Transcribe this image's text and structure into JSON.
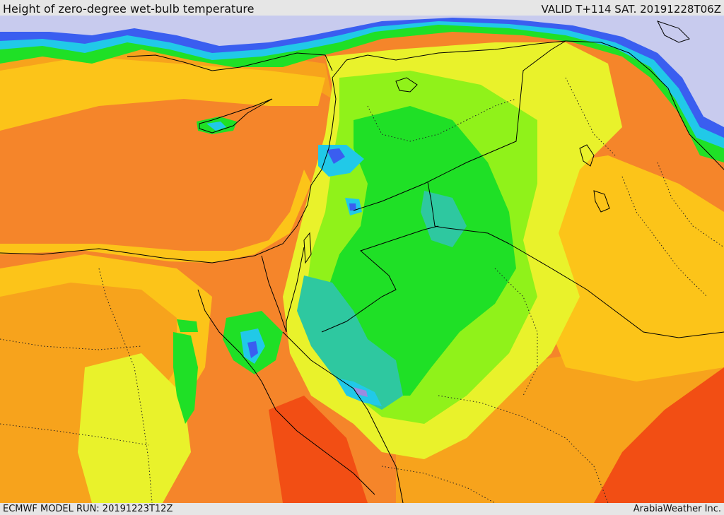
{
  "header": {
    "title": "Height of zero-degree wet-bulb temperature",
    "valid": "VALID T+114 SAT. 20191228T06Z"
  },
  "footer": {
    "model_run": "ECMWF MODEL RUN: 20191223T12Z",
    "credit": "ArabiaWeather Inc."
  },
  "map": {
    "region": "Eastern Mediterranean and Middle East",
    "colors": {
      "lavender": "#c8cbee",
      "blue": "#3a5ef0",
      "cyan": "#21c9e8",
      "teal": "#2ec8a0",
      "green": "#1fe026",
      "light_green": "#90f21a",
      "yellow": "#e9f22b",
      "gold": "#fcc419",
      "orange": "#f7a31c",
      "dark_orange": "#f5852a",
      "red_orange": "#f24e14",
      "violet": "#9a8ae0"
    }
  }
}
